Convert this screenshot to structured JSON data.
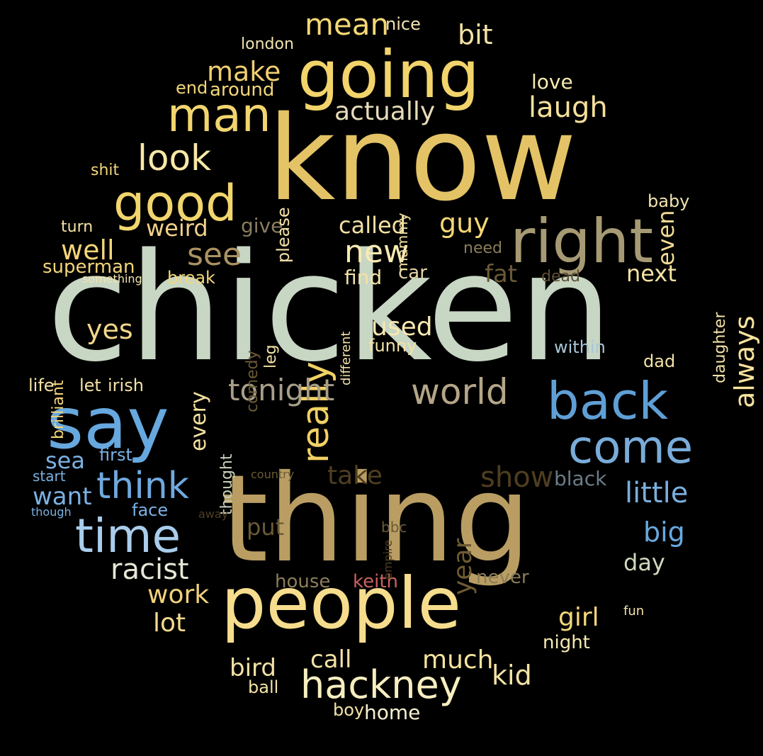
{
  "background": "#000000",
  "words": [
    {
      "text": "chicken",
      "color": "#c8d6c4"
    },
    {
      "text": "know",
      "color": "#e3c366"
    },
    {
      "text": "thing",
      "color": "#b99d62"
    },
    {
      "text": "going",
      "color": "#f2d46b"
    },
    {
      "text": "people",
      "color": "#f6dd8d"
    },
    {
      "text": "say",
      "color": "#67a8df"
    },
    {
      "text": "right",
      "color": "#a69a74"
    },
    {
      "text": "back",
      "color": "#5f9fd6"
    },
    {
      "text": "come",
      "color": "#79acd9"
    },
    {
      "text": "good",
      "color": "#f1d56d"
    },
    {
      "text": "man",
      "color": "#f2d56e"
    },
    {
      "text": "time",
      "color": "#a9cdeb"
    },
    {
      "text": "hackney",
      "color": "#f7eec0"
    },
    {
      "text": "world",
      "color": "#b5a689"
    },
    {
      "text": "think",
      "color": "#70a9df"
    },
    {
      "text": "look",
      "color": "#f8e8a7"
    },
    {
      "text": "really",
      "color": "#f2d164"
    },
    {
      "text": "tonight",
      "color": "#a79f89"
    },
    {
      "text": "new",
      "color": "#f7eab1"
    },
    {
      "text": "see",
      "color": "#ab9263"
    },
    {
      "text": "racist",
      "color": "#e6e6d7"
    },
    {
      "text": "little",
      "color": "#7aaedb"
    },
    {
      "text": "mean",
      "color": "#f4d776"
    },
    {
      "text": "make",
      "color": "#f0ce71"
    },
    {
      "text": "laugh",
      "color": "#f5e09b"
    },
    {
      "text": "actually",
      "color": "#e7dcba"
    },
    {
      "text": "big",
      "color": "#68a8de"
    },
    {
      "text": "bit",
      "color": "#f3e2a5"
    },
    {
      "text": "always",
      "color": "#f7e39d"
    },
    {
      "text": "yes",
      "color": "#f3d68a"
    },
    {
      "text": "guy",
      "color": "#f3d676"
    },
    {
      "text": "called",
      "color": "#f2e0a1"
    },
    {
      "text": "well",
      "color": "#f3d677"
    },
    {
      "text": "weird",
      "color": "#f1d28a"
    },
    {
      "text": "used",
      "color": "#f7e8b0"
    },
    {
      "text": "work",
      "color": "#f1d27a"
    },
    {
      "text": "lot",
      "color": "#f3d98c"
    },
    {
      "text": "take",
      "color": "#4f3e20"
    },
    {
      "text": "show",
      "color": "#4f3e20"
    },
    {
      "text": "year",
      "color": "#6e5a32"
    },
    {
      "text": "put",
      "color": "#6b5a36"
    },
    {
      "text": "fat",
      "color": "#6b5a36"
    },
    {
      "text": "even",
      "color": "#f2dc93"
    },
    {
      "text": "next",
      "color": "#f5e3a3"
    },
    {
      "text": "want",
      "color": "#7bb1e3"
    },
    {
      "text": "sea",
      "color": "#7bb1e3"
    },
    {
      "text": "kid",
      "color": "#f3e2a6"
    },
    {
      "text": "much",
      "color": "#f5e39e"
    },
    {
      "text": "call",
      "color": "#f3e2a6"
    },
    {
      "text": "bird",
      "color": "#f3e2a6"
    },
    {
      "text": "girl",
      "color": "#f3d67b"
    },
    {
      "text": "day",
      "color": "#cfd8bd"
    },
    {
      "text": "every",
      "color": "#f5e0a0"
    },
    {
      "text": "give",
      "color": "#8a7d5e"
    },
    {
      "text": "superman",
      "color": "#f2d57a"
    },
    {
      "text": "black",
      "color": "#6b7c87"
    },
    {
      "text": "home",
      "color": "#f7f0d0"
    },
    {
      "text": "boy",
      "color": "#f3e2a6"
    },
    {
      "text": "ball",
      "color": "#f3e2a6"
    },
    {
      "text": "night",
      "color": "#f7eab1"
    },
    {
      "text": "never",
      "color": "#8b7d5a"
    },
    {
      "text": "house",
      "color": "#8b7d5a"
    },
    {
      "text": "keith",
      "color": "#c8615f"
    },
    {
      "text": "face",
      "color": "#7bb1e3"
    },
    {
      "text": "first",
      "color": "#7bb1e3"
    },
    {
      "text": "start",
      "color": "#7bb1e3"
    },
    {
      "text": "though",
      "color": "#7bb1e3"
    },
    {
      "text": "find",
      "color": "#f3e2a6"
    },
    {
      "text": "car",
      "color": "#e5d3a5"
    },
    {
      "text": "love",
      "color": "#f7eab1"
    },
    {
      "text": "end",
      "color": "#f3d678"
    },
    {
      "text": "around",
      "color": "#f2d67a"
    },
    {
      "text": "london",
      "color": "#f2e3b0"
    },
    {
      "text": "nice",
      "color": "#f2e3b0"
    },
    {
      "text": "shit",
      "color": "#f3d678"
    },
    {
      "text": "turn",
      "color": "#f3e2a6"
    },
    {
      "text": "baby",
      "color": "#f2e3b0"
    },
    {
      "text": "please",
      "color": "#f3e2a6"
    },
    {
      "text": "mammy",
      "color": "#f3e2a6"
    },
    {
      "text": "different",
      "color": "#f3e2a6"
    },
    {
      "text": "need",
      "color": "#8b7d5a"
    },
    {
      "text": "dead",
      "color": "#5d4f33"
    },
    {
      "text": "break",
      "color": "#f2d67a"
    },
    {
      "text": "something",
      "color": "#f2e3b0"
    },
    {
      "text": "brilliant",
      "color": "#f2d67a"
    },
    {
      "text": "life",
      "color": "#f3e2a6"
    },
    {
      "text": "let",
      "color": "#f3e2a6"
    },
    {
      "text": "irish",
      "color": "#f3e2a6"
    },
    {
      "text": "comedy",
      "color": "#6b5a36"
    },
    {
      "text": "leg",
      "color": "#f3e2a6"
    },
    {
      "text": "funny",
      "color": "#f3e2a6"
    },
    {
      "text": "within",
      "color": "#a9c6d8"
    },
    {
      "text": "dad",
      "color": "#f3e2a6"
    },
    {
      "text": "daughter",
      "color": "#f3e2a6"
    },
    {
      "text": "thought",
      "color": "#c7cfb8"
    },
    {
      "text": "country",
      "color": "#6b5a36"
    },
    {
      "text": "away",
      "color": "#4f3e20"
    },
    {
      "text": "empire",
      "color": "#4f3e20"
    },
    {
      "text": "bbc",
      "color": "#6b5a36"
    },
    {
      "text": "fun",
      "color": "#f3e2a6"
    }
  ]
}
